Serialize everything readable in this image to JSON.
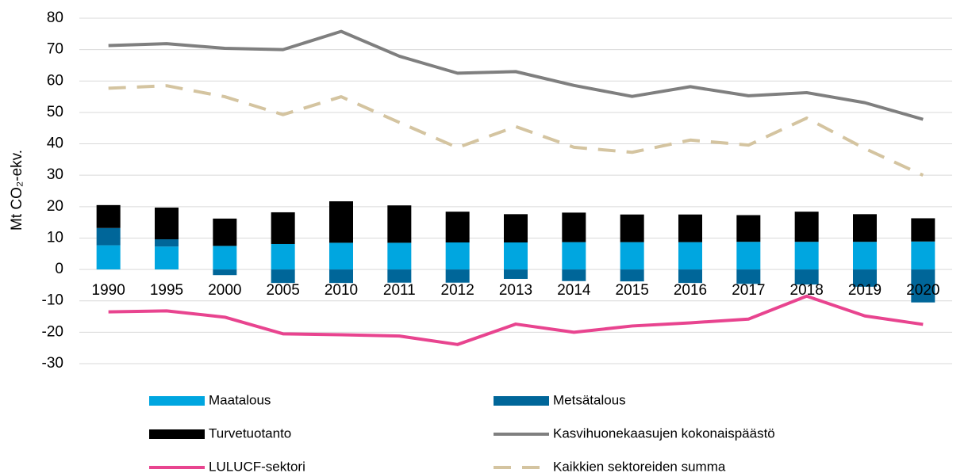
{
  "chart_data": {
    "type": "bar",
    "y_label": "Mt CO₂-ekv.",
    "categories": [
      "1990",
      "1995",
      "2000",
      "2005",
      "2010",
      "2011",
      "2012",
      "2013",
      "2014",
      "2015",
      "2016",
      "2017",
      "2018",
      "2019",
      "2020"
    ],
    "ylim": [
      -30,
      80
    ],
    "yticks": [
      -30,
      -20,
      -10,
      0,
      10,
      20,
      30,
      40,
      50,
      60,
      70,
      80
    ],
    "grid": true,
    "series": [
      {
        "name": "Maatalous",
        "type": "bar",
        "color": "#00a6e0",
        "values": [
          7.7,
          7.3,
          7.5,
          8.1,
          8.5,
          8.5,
          8.6,
          8.6,
          8.7,
          8.7,
          8.7,
          8.8,
          8.8,
          8.8,
          8.9
        ]
      },
      {
        "name": "Metsätalous",
        "type": "bar",
        "color": "#006699",
        "values": [
          5.5,
          2.3,
          -1.8,
          -4.3,
          -4.3,
          -4.2,
          -4.2,
          -3.0,
          -3.7,
          -3.8,
          -4.3,
          -4.6,
          -4.8,
          -5.5,
          -10.5
        ]
      },
      {
        "name": "Turvetuotanto",
        "type": "bar",
        "color": "#000000",
        "values": [
          7.3,
          10.1,
          8.7,
          10.1,
          13.2,
          11.9,
          9.8,
          9.0,
          9.4,
          8.8,
          8.8,
          8.5,
          9.6,
          8.8,
          7.4
        ]
      },
      {
        "name": "Kasvihuonekaasujen kokonaispäästö",
        "type": "line",
        "color": "#7f7f7f",
        "values": [
          71.3,
          71.9,
          70.4,
          70.0,
          75.8,
          67.9,
          62.5,
          63.0,
          58.6,
          55.1,
          58.2,
          55.3,
          56.3,
          53.1,
          47.8
        ]
      },
      {
        "name": "LULUCF-sektori",
        "type": "line",
        "color": "#e8448f",
        "values": [
          -13.5,
          -13.2,
          -15.2,
          -20.5,
          -20.8,
          -21.2,
          -23.9,
          -17.4,
          -20.0,
          -18.0,
          -17.0,
          -15.8,
          -8.5,
          -14.8,
          -17.5
        ]
      },
      {
        "name": "Kaikkien sektoreiden summa",
        "type": "line",
        "dashed": true,
        "color": "#d4c4a0",
        "values": [
          57.7,
          58.5,
          55.0,
          49.3,
          55.0,
          46.8,
          38.8,
          45.5,
          38.9,
          37.3,
          41.2,
          39.6,
          48.2,
          38.5,
          30.0
        ]
      }
    ]
  }
}
